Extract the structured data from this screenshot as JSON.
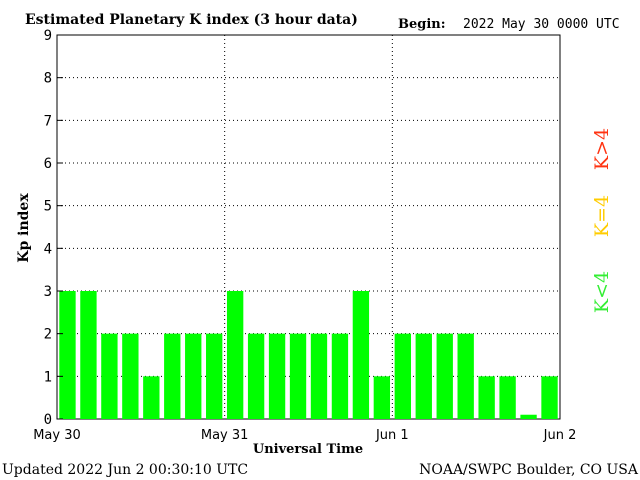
{
  "header": {
    "title": "Estimated Planetary K index (3 hour data)",
    "begin_label": "Begin:",
    "begin_value": "2022 May 30 0000 UTC"
  },
  "footer": {
    "updated": "Updated 2022 Jun  2 00:30:10 UTC",
    "source": "NOAA/SWPC Boulder, CO USA"
  },
  "legend": {
    "low": {
      "label": "K<4",
      "color": "#33ee33"
    },
    "mid": {
      "label": "K=4",
      "color": "#ffcc00"
    },
    "high": {
      "label": "K>4",
      "color": "#ff3311"
    }
  },
  "chart_data": {
    "type": "bar",
    "title": "Estimated Planetary K index (3 hour data)",
    "xlabel": "Universal Time",
    "ylabel": "Kp index",
    "ylim": [
      0,
      9
    ],
    "yticks": [
      0,
      1,
      2,
      3,
      4,
      5,
      6,
      7,
      8,
      9
    ],
    "xticks": [
      "May 30",
      "May 31",
      "Jun 1",
      "Jun 2"
    ],
    "values": [
      3,
      3,
      2,
      2,
      1,
      2,
      2,
      2,
      3,
      2,
      2,
      2,
      2,
      2,
      3,
      1,
      2,
      2,
      2,
      2,
      1,
      1,
      0.1,
      1
    ],
    "bar_color": "#00ff00",
    "grid": "dotted"
  }
}
